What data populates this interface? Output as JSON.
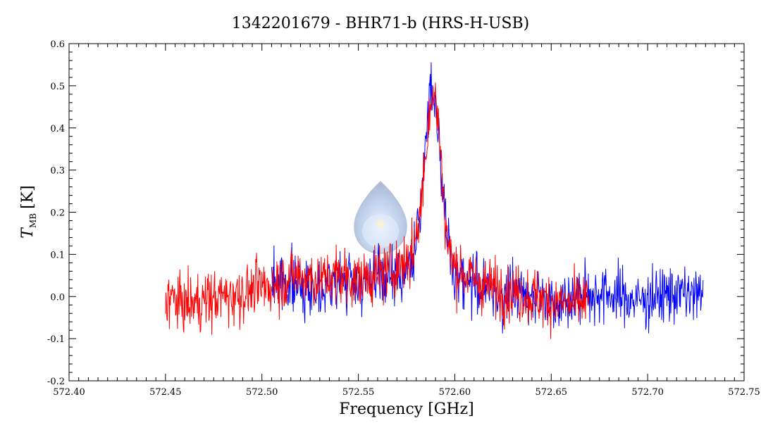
{
  "chart_data": {
    "type": "line",
    "title": "1342201679 - BHR71-b (HRS-H-USB)",
    "xlabel": "Frequency [GHz]",
    "ylabel_main": "T",
    "ylabel_sub": "MB",
    "ylabel_unit": "[K]",
    "xlim": [
      572.4,
      572.75
    ],
    "ylim": [
      -0.2,
      0.6
    ],
    "xticks": [
      "572.40",
      "572.45",
      "572.50",
      "572.55",
      "572.60",
      "572.65",
      "572.70",
      "572.75"
    ],
    "yticks": [
      "-0.2",
      "-0.1",
      "0.0",
      "0.1",
      "0.2",
      "0.3",
      "0.4",
      "0.5",
      "0.6"
    ],
    "grid": false,
    "legend": "none",
    "series": [
      {
        "color": "#0000ff",
        "x": [
          572.505,
          572.515,
          572.525,
          572.535,
          572.545,
          572.555,
          572.565,
          572.575,
          572.58,
          572.583,
          572.585,
          572.587,
          572.589,
          572.591,
          572.593,
          572.595,
          572.597,
          572.6,
          572.605,
          572.615,
          572.625,
          572.635,
          572.645,
          572.655,
          572.665,
          572.675,
          572.685,
          572.695,
          572.705,
          572.715,
          572.725,
          572.729
        ],
        "y": [
          0.04,
          0.03,
          0.02,
          0.03,
          0.04,
          0.03,
          0.04,
          0.06,
          0.12,
          0.24,
          0.38,
          0.5,
          0.49,
          0.42,
          0.3,
          0.18,
          0.1,
          0.06,
          0.04,
          0.02,
          0.0,
          0.01,
          0.0,
          -0.01,
          0.0,
          0.01,
          0.0,
          -0.01,
          0.0,
          0.01,
          0.0,
          0.0
        ]
      },
      {
        "color": "#ff0000",
        "x": [
          572.45,
          572.46,
          572.47,
          572.48,
          572.49,
          572.5,
          572.51,
          572.52,
          572.53,
          572.54,
          572.55,
          572.56,
          572.57,
          572.578,
          572.582,
          572.585,
          572.587,
          572.589,
          572.591,
          572.593,
          572.595,
          572.597,
          572.6,
          572.61,
          572.62,
          572.63,
          572.64,
          572.65,
          572.66,
          572.67
        ],
        "y": [
          0.0,
          -0.02,
          -0.01,
          0.0,
          0.01,
          0.02,
          0.04,
          0.05,
          0.04,
          0.05,
          0.04,
          0.05,
          0.07,
          0.1,
          0.2,
          0.34,
          0.46,
          0.48,
          0.43,
          0.32,
          0.18,
          0.11,
          0.07,
          0.04,
          0.02,
          0.01,
          0.0,
          -0.01,
          -0.02,
          -0.01
        ]
      }
    ]
  }
}
